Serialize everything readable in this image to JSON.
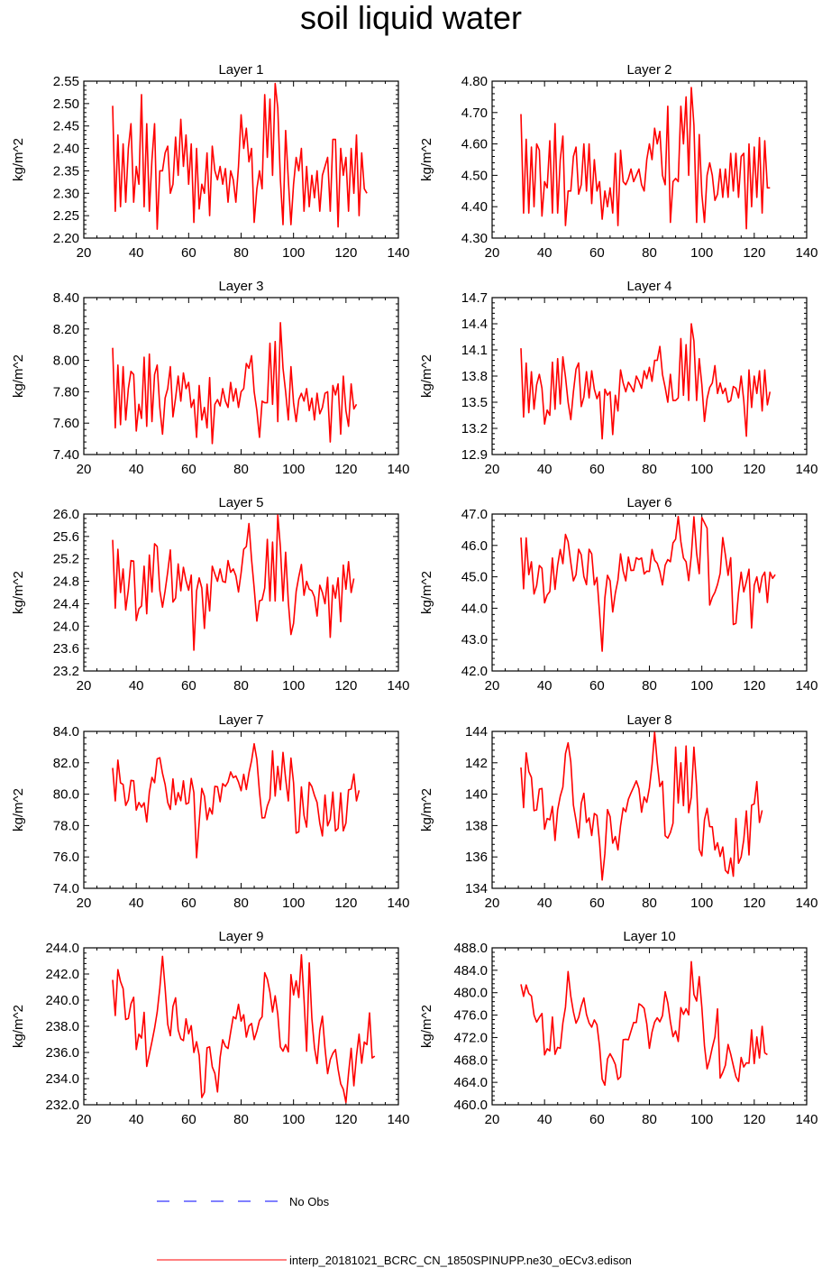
{
  "title": "soil liquid water",
  "colors": {
    "model": "#ff0000",
    "obs": "#0000ff",
    "axes": "#000000"
  },
  "legend": [
    {
      "label": "No Obs",
      "style": "dashed",
      "color": "#0000ff"
    },
    {
      "label": "interp_20181021_BCRC_CN_1850SPINUPP.ne30_oECv3.edison",
      "style": "solid",
      "color": "#ff0000"
    }
  ],
  "chart_data": [
    {
      "type": "line",
      "title": "Layer 1",
      "ylabel": "kg/m^2",
      "xlim": [
        20,
        140
      ],
      "xticks": [
        "20",
        "40",
        "60",
        "80",
        "100",
        "120",
        "140"
      ],
      "ylim": [
        2.2,
        2.55
      ],
      "yticks": [
        "2.20",
        "2.25",
        "2.30",
        "2.35",
        "2.40",
        "2.45",
        "2.50",
        "2.55"
      ],
      "x_start": 31,
      "x_step": 1,
      "values": [
        2.495,
        2.26,
        2.43,
        2.27,
        2.41,
        2.28,
        2.4,
        2.455,
        2.28,
        2.36,
        2.32,
        2.52,
        2.27,
        2.455,
        2.26,
        2.375,
        2.455,
        2.22,
        2.35,
        2.35,
        2.39,
        2.405,
        2.3,
        2.32,
        2.425,
        2.34,
        2.465,
        2.36,
        2.43,
        2.32,
        2.41,
        2.235,
        2.4,
        2.265,
        2.32,
        2.3,
        2.39,
        2.25,
        2.405,
        2.35,
        2.33,
        2.36,
        2.32,
        2.355,
        2.28,
        2.35,
        2.33,
        2.28,
        2.36,
        2.475,
        2.4,
        2.445,
        2.37,
        2.4,
        2.235,
        2.31,
        2.35,
        2.31,
        2.52,
        2.38,
        2.51,
        2.34,
        2.545,
        2.49,
        2.33,
        2.23,
        2.44,
        2.33,
        2.23,
        2.32,
        2.38,
        2.35,
        2.4,
        2.26,
        2.36,
        2.27,
        2.34,
        2.29,
        2.35,
        2.26,
        2.34,
        2.36,
        2.38,
        2.26,
        2.42,
        2.42,
        2.225,
        2.4,
        2.34,
        2.38,
        2.26,
        2.4,
        2.3,
        2.43,
        2.25,
        2.39,
        2.31,
        2.3
      ]
    },
    {
      "type": "line",
      "title": "Layer 2",
      "ylabel": "kg/m^2",
      "xlim": [
        20,
        140
      ],
      "xticks": [
        "20",
        "40",
        "60",
        "80",
        "100",
        "120",
        "140"
      ],
      "ylim": [
        4.3,
        4.8
      ],
      "yticks": [
        "4.30",
        "4.40",
        "4.50",
        "4.60",
        "4.70",
        "4.80"
      ],
      "x_start": 31,
      "x_step": 1,
      "values": [
        4.695,
        4.38,
        4.615,
        4.38,
        4.59,
        4.4,
        4.6,
        4.58,
        4.37,
        4.48,
        4.46,
        4.61,
        4.38,
        4.665,
        4.38,
        4.55,
        4.625,
        4.34,
        4.45,
        4.45,
        4.56,
        4.59,
        4.44,
        4.47,
        4.6,
        4.45,
        4.6,
        4.41,
        4.55,
        4.45,
        4.48,
        4.36,
        4.45,
        4.4,
        4.46,
        4.38,
        4.57,
        4.34,
        4.58,
        4.48,
        4.47,
        4.49,
        4.52,
        4.48,
        4.5,
        4.52,
        4.47,
        4.45,
        4.55,
        4.6,
        4.55,
        4.65,
        4.6,
        4.64,
        4.5,
        4.47,
        4.72,
        4.35,
        4.48,
        4.49,
        4.48,
        4.72,
        4.6,
        4.75,
        4.5,
        4.78,
        4.66,
        4.35,
        4.63,
        4.44,
        4.35,
        4.5,
        4.54,
        4.5,
        4.42,
        4.44,
        4.52,
        4.43,
        4.52,
        4.43,
        4.57,
        4.45,
        4.57,
        4.43,
        4.56,
        4.57,
        4.33,
        4.6,
        4.4,
        4.59,
        4.43,
        4.62,
        4.38,
        4.61,
        4.46,
        4.46
      ]
    },
    {
      "type": "line",
      "title": "Layer 3",
      "ylabel": "kg/m^2",
      "xlim": [
        20,
        140
      ],
      "xticks": [
        "20",
        "40",
        "60",
        "80",
        "100",
        "120",
        "140"
      ],
      "ylim": [
        7.4,
        8.4
      ],
      "yticks": [
        "7.40",
        "7.60",
        "7.80",
        "8.00",
        "8.20",
        "8.40"
      ],
      "x_start": 31,
      "x_step": 1,
      "values": [
        8.08,
        7.57,
        7.97,
        7.59,
        7.96,
        7.62,
        7.82,
        7.93,
        7.91,
        7.55,
        7.72,
        7.63,
        8.02,
        7.58,
        8.04,
        7.61,
        7.91,
        7.97,
        7.7,
        7.53,
        7.76,
        7.82,
        7.96,
        7.64,
        7.76,
        7.9,
        7.74,
        7.92,
        7.82,
        7.86,
        7.7,
        7.75,
        7.51,
        7.84,
        7.62,
        7.7,
        7.57,
        7.89,
        7.47,
        7.72,
        7.75,
        7.71,
        7.82,
        7.74,
        7.7,
        7.86,
        7.74,
        7.82,
        7.7,
        7.8,
        7.82,
        7.98,
        7.95,
        8.03,
        7.8,
        7.68,
        7.51,
        7.74,
        7.73,
        7.73,
        8.11,
        7.72,
        8.12,
        7.61,
        8.24,
        7.95,
        7.8,
        7.62,
        7.96,
        7.73,
        7.61,
        7.75,
        7.79,
        7.74,
        7.82,
        7.68,
        7.76,
        7.62,
        7.79,
        7.66,
        7.7,
        7.79,
        7.8,
        7.48,
        7.84,
        7.78,
        7.85,
        7.53,
        7.9,
        7.68,
        7.58,
        7.85,
        7.69,
        7.72
      ]
    },
    {
      "type": "line",
      "title": "Layer 4",
      "ylabel": "kg/m^2",
      "xlim": [
        20,
        140
      ],
      "xticks": [
        "20",
        "40",
        "60",
        "80",
        "100",
        "120",
        "140"
      ],
      "ylim": [
        12.9,
        14.7
      ],
      "yticks": [
        "12.9",
        "13.2",
        "13.5",
        "13.8",
        "14.1",
        "14.4",
        "14.7"
      ],
      "x_start": 31,
      "x_step": 1,
      "values": [
        14.12,
        13.33,
        13.95,
        13.38,
        13.85,
        13.42,
        13.7,
        13.82,
        13.66,
        13.25,
        13.41,
        13.35,
        13.96,
        13.42,
        14.0,
        13.48,
        14.02,
        13.79,
        13.5,
        13.3,
        13.62,
        13.88,
        13.95,
        13.45,
        13.56,
        13.85,
        13.55,
        13.86,
        13.65,
        13.54,
        13.62,
        13.08,
        13.65,
        13.58,
        13.62,
        13.13,
        13.58,
        13.4,
        13.87,
        13.72,
        13.62,
        13.73,
        13.68,
        13.62,
        13.8,
        13.74,
        13.66,
        13.86,
        13.77,
        13.9,
        13.74,
        13.98,
        13.98,
        14.14,
        13.82,
        13.67,
        13.5,
        13.82,
        13.52,
        13.52,
        13.55,
        14.23,
        13.58,
        14.16,
        13.52,
        14.4,
        14.2,
        13.52,
        14.0,
        13.7,
        13.28,
        13.54,
        13.67,
        13.72,
        13.92,
        13.6,
        13.72,
        13.6,
        13.66,
        13.5,
        13.52,
        13.68,
        13.66,
        13.55,
        13.8,
        13.52,
        13.11,
        13.87,
        13.44,
        13.8,
        13.6,
        13.86,
        13.4,
        13.87,
        13.47,
        13.62
      ]
    },
    {
      "type": "line",
      "title": "Layer 5",
      "ylabel": "kg/m^2",
      "xlim": [
        20,
        140
      ],
      "xticks": [
        "20",
        "40",
        "60",
        "80",
        "100",
        "120",
        "140"
      ],
      "ylim": [
        23.2,
        26.0
      ],
      "yticks": [
        "23.2",
        "23.6",
        "24.0",
        "24.4",
        "24.8",
        "25.2",
        "25.6",
        "26.0"
      ],
      "x_start": 31,
      "x_step": 1,
      "values": [
        25.54,
        24.32,
        25.37,
        24.6,
        25.02,
        24.29,
        24.65,
        25.17,
        25.16,
        24.1,
        24.31,
        24.36,
        25.07,
        24.22,
        25.27,
        24.61,
        25.47,
        25.42,
        24.64,
        24.34,
        24.63,
        24.97,
        25.36,
        24.43,
        24.5,
        25.11,
        24.63,
        25.05,
        24.81,
        24.64,
        24.91,
        23.57,
        24.63,
        24.86,
        24.68,
        23.96,
        24.75,
        24.27,
        25.07,
        24.93,
        24.8,
        25.02,
        24.8,
        24.78,
        25.17,
        24.96,
        25.02,
        24.9,
        24.61,
        24.95,
        25.37,
        25.42,
        25.83,
        25.19,
        24.68,
        24.09,
        24.45,
        24.47,
        24.68,
        25.55,
        24.45,
        25.5,
        24.45,
        25.98,
        25.41,
        24.45,
        25.32,
        24.43,
        23.85,
        24.05,
        24.62,
        24.88,
        25.1,
        24.55,
        24.8,
        24.66,
        24.63,
        24.52,
        24.18,
        24.73,
        24.6,
        24.4,
        24.87,
        23.8,
        24.73,
        24.5,
        24.86,
        24.08,
        25.09,
        24.66,
        25.15,
        24.6,
        24.85
      ]
    },
    {
      "type": "line",
      "title": "Layer 6",
      "ylabel": "kg/m^2",
      "xlim": [
        20,
        140
      ],
      "xticks": [
        "20",
        "40",
        "60",
        "80",
        "100",
        "120",
        "140"
      ],
      "ylim": [
        42.0,
        47.0
      ],
      "yticks": [
        "42.0",
        "43.0",
        "44.0",
        "45.0",
        "46.0",
        "47.0"
      ],
      "x_start": 31,
      "x_step": 1,
      "values": [
        46.25,
        44.62,
        46.24,
        45.07,
        45.48,
        44.45,
        44.72,
        45.36,
        45.27,
        44.17,
        44.42,
        44.53,
        45.6,
        44.6,
        45.37,
        45.87,
        45.42,
        46.35,
        46.12,
        45.45,
        44.87,
        45.07,
        45.88,
        45.7,
        45.01,
        44.75,
        45.88,
        45.73,
        44.74,
        44.98,
        43.85,
        42.63,
        44.33,
        45.05,
        44.87,
        43.88,
        44.48,
        44.9,
        45.73,
        45.18,
        44.87,
        45.63,
        45.2,
        45.21,
        45.61,
        45.55,
        45.6,
        45.09,
        45.18,
        45.17,
        45.87,
        45.53,
        45.43,
        45.16,
        44.74,
        45.37,
        45.55,
        45.48,
        46.08,
        46.2,
        46.92,
        46.12,
        45.6,
        45.48,
        44.88,
        45.67,
        46.91,
        45.75,
        45.1,
        46.89,
        46.72,
        46.55,
        44.1,
        44.35,
        44.51,
        44.76,
        45.11,
        46.25,
        45.7,
        45.05,
        45.61,
        43.48,
        43.52,
        44.49,
        45.15,
        44.52,
        44.85,
        45.24,
        43.37,
        44.73,
        45.0,
        44.5,
        45.0,
        45.15,
        44.18,
        45.15,
        44.95,
        45.07
      ]
    },
    {
      "type": "line",
      "title": "Layer 7",
      "ylabel": "kg/m^2",
      "xlim": [
        20,
        140
      ],
      "xticks": [
        "20",
        "40",
        "60",
        "80",
        "100",
        "120",
        "140"
      ],
      "ylim": [
        74.0,
        84.0
      ],
      "yticks": [
        "74.0",
        "76.0",
        "78.0",
        "80.0",
        "82.0",
        "84.0"
      ],
      "x_start": 31,
      "x_step": 1,
      "values": [
        81.67,
        79.57,
        82.17,
        80.72,
        80.62,
        79.28,
        79.63,
        80.88,
        80.85,
        78.98,
        79.47,
        79.17,
        79.45,
        78.23,
        80.12,
        81.07,
        80.73,
        82.25,
        82.32,
        81.32,
        80.62,
        79.47,
        79.03,
        80.97,
        79.33,
        80.1,
        79.58,
        80.85,
        79.37,
        79.45,
        81.0,
        80.1,
        75.95,
        78.23,
        80.37,
        79.88,
        78.37,
        79.12,
        78.73,
        80.5,
        80.47,
        79.52,
        80.67,
        80.5,
        80.78,
        81.42,
        81.05,
        81.16,
        80.77,
        80.22,
        81.27,
        80.3,
        81.35,
        82.13,
        83.21,
        82.2,
        80.13,
        78.48,
        78.5,
        79.25,
        79.71,
        82.76,
        79.88,
        81.77,
        80.28,
        82.66,
        80.98,
        79.57,
        82.3,
        80.72,
        77.52,
        77.6,
        80.46,
        78.65,
        77.9,
        80.76,
        80.48,
        79.92,
        79.47,
        78.15,
        77.34,
        79.95,
        77.98,
        78.4,
        80.13,
        77.65,
        77.82,
        80.08,
        77.66,
        78.16,
        80.27,
        80.33,
        81.28,
        79.57,
        80.25
      ]
    },
    {
      "type": "line",
      "title": "Layer 8",
      "ylabel": "kg/m^2",
      "xlim": [
        20,
        140
      ],
      "xticks": [
        "20",
        "40",
        "60",
        "80",
        "100",
        "120",
        "140"
      ],
      "ylim": [
        134,
        144
      ],
      "yticks": [
        "134",
        "136",
        "138",
        "140",
        "142",
        "144"
      ],
      "x_start": 31,
      "x_step": 1,
      "values": [
        141.7,
        139.15,
        142.63,
        141.45,
        141.07,
        138.95,
        139.0,
        140.32,
        140.36,
        137.77,
        138.45,
        138.37,
        139.22,
        137.05,
        139.0,
        139.87,
        140.45,
        142.58,
        143.27,
        142.05,
        139.3,
        138.32,
        137.22,
        139.42,
        140.05,
        138.2,
        138.48,
        137.37,
        138.77,
        138.64,
        136.93,
        134.53,
        136.2,
        139.02,
        138.57,
        136.88,
        137.3,
        136.45,
        137.98,
        139.12,
        138.88,
        139.68,
        140.08,
        140.45,
        140.85,
        140.35,
        138.85,
        139.82,
        139.48,
        140.4,
        141.85,
        143.94,
        142.03,
        140.48,
        140.82,
        137.35,
        137.2,
        137.55,
        138.15,
        143.0,
        139.43,
        142.0,
        139.27,
        143.07,
        138.82,
        139.82,
        143.0,
        140.5,
        136.48,
        136.07,
        138.37,
        139.1,
        137.93,
        137.92,
        136.45,
        136.9,
        136.03,
        136.63,
        135.15,
        134.95,
        135.93,
        134.77,
        138.45,
        135.6,
        136.0,
        137.1,
        138.93,
        136.13,
        139.3,
        139.38,
        140.8,
        138.2,
        138.97
      ]
    },
    {
      "type": "line",
      "title": "Layer 9",
      "ylabel": "kg/m^2",
      "xlim": [
        20,
        140
      ],
      "xticks": [
        "20",
        "40",
        "60",
        "80",
        "100",
        "120",
        "140"
      ],
      "ylim": [
        232.0,
        244.0
      ],
      "yticks": [
        "232.0",
        "234.0",
        "236.0",
        "238.0",
        "240.0",
        "242.0",
        "244.0"
      ],
      "x_start": 31,
      "x_step": 1,
      "values": [
        241.55,
        238.82,
        242.33,
        241.42,
        240.88,
        238.52,
        238.6,
        239.72,
        240.22,
        236.23,
        237.4,
        237.1,
        239.07,
        234.93,
        235.87,
        236.83,
        237.85,
        239.08,
        240.92,
        243.35,
        240.92,
        238.15,
        237.28,
        239.52,
        240.18,
        237.72,
        237.05,
        236.9,
        238.57,
        237.43,
        238.05,
        236.0,
        236.82,
        235.77,
        232.55,
        232.95,
        236.35,
        236.43,
        234.9,
        234.4,
        232.98,
        235.6,
        236.97,
        236.47,
        236.3,
        237.55,
        238.73,
        238.57,
        239.68,
        238.4,
        238.88,
        237.17,
        238.02,
        238.22,
        236.98,
        237.63,
        238.45,
        238.73,
        242.1,
        241.6,
        240.61,
        239.1,
        240.33,
        238.92,
        236.42,
        236.1,
        236.6,
        236.05,
        241.95,
        240.4,
        241.48,
        240.2,
        243.47,
        240.08,
        236.1,
        242.85,
        238.63,
        236.38,
        235.15,
        237.67,
        238.77,
        236.32,
        234.38,
        235.45,
        235.93,
        236.22,
        234.72,
        233.6,
        233.18,
        232.18,
        234.4,
        236.32,
        233.45,
        235.73,
        237.4,
        235.18,
        236.8,
        236.6,
        239.02,
        235.58,
        235.72
      ]
    },
    {
      "type": "line",
      "title": "Layer 10",
      "ylabel": "kg/m^2",
      "xlim": [
        20,
        140
      ],
      "xticks": [
        "20",
        "40",
        "60",
        "80",
        "100",
        "120",
        "140"
      ],
      "ylim": [
        460.0,
        488.0
      ],
      "yticks": [
        "460.0",
        "464.0",
        "468.0",
        "472.0",
        "476.0",
        "480.0",
        "484.0",
        "488.0"
      ],
      "x_start": 31,
      "x_step": 1,
      "values": [
        481.5,
        479.35,
        481.37,
        479.85,
        479.4,
        476.0,
        474.75,
        475.6,
        476.28,
        468.9,
        470.0,
        469.62,
        475.65,
        469.0,
        470.23,
        470.08,
        474.58,
        477.43,
        483.77,
        479.35,
        476.58,
        474.55,
        475.57,
        477.6,
        479.05,
        476.1,
        474.6,
        473.85,
        475.15,
        474.27,
        470.45,
        464.58,
        463.5,
        468.18,
        469.1,
        468.25,
        467.2,
        464.5,
        465.0,
        471.6,
        471.68,
        471.6,
        473.15,
        474.68,
        474.68,
        478.02,
        477.72,
        477.18,
        474.45,
        470.07,
        472.95,
        474.75,
        475.52,
        474.8,
        475.9,
        480.17,
        478.2,
        474.8,
        472.15,
        473.18,
        471.3,
        477.33,
        476.13,
        477.13,
        476.05,
        485.53,
        479.68,
        478.5,
        482.87,
        477.4,
        470.5,
        466.4,
        468.07,
        470.22,
        472.1,
        477.1,
        464.78,
        465.78,
        467.07,
        470.75,
        469.05,
        466.98,
        465.03,
        464.17,
        468.43,
        466.75,
        467.48,
        467.4,
        473.38,
        467.35,
        472.1,
        468.35,
        474.0,
        469.25,
        468.95
      ]
    }
  ]
}
